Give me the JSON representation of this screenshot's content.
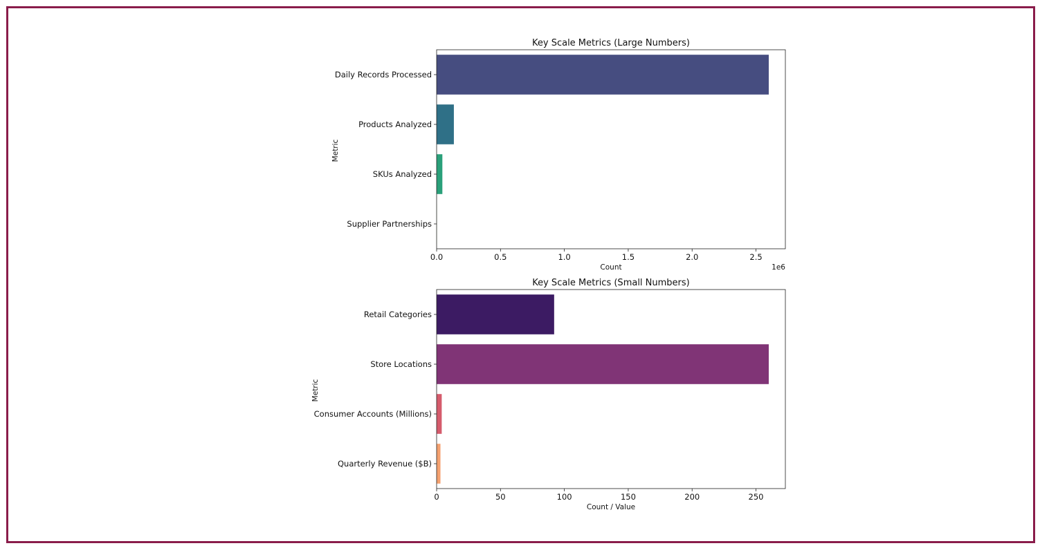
{
  "chart_data": [
    {
      "type": "bar",
      "orientation": "horizontal",
      "title": "Key Scale Metrics (Large Numbers)",
      "xlabel": "Count",
      "ylabel": "Metric",
      "offset_label": "1e6",
      "categories": [
        "Daily Records Processed",
        "Products Analyzed",
        "SKUs Analyzed",
        "Supplier Partnerships"
      ],
      "values": [
        2600000,
        135000,
        45000,
        1000
      ],
      "colors": [
        "#464d80",
        "#2f7087",
        "#2aa07a",
        "#70c84e"
      ],
      "xlim": [
        0,
        2730000
      ],
      "xticks": [
        0,
        500000,
        1000000,
        1500000,
        2000000,
        2500000
      ],
      "xtick_labels": [
        "0.0",
        "0.5",
        "1.0",
        "1.5",
        "2.0",
        "2.5"
      ],
      "grid": false
    },
    {
      "type": "bar",
      "orientation": "horizontal",
      "title": "Key Scale Metrics (Small Numbers)",
      "xlabel": "Count / Value",
      "ylabel": "Metric",
      "categories": [
        "Retail Categories",
        "Store Locations",
        "Consumer Accounts (Millions)",
        "Quarterly Revenue ($B)"
      ],
      "values": [
        92,
        260,
        4,
        3
      ],
      "colors": [
        "#3c1b63",
        "#803476",
        "#d55b6c",
        "#f4a16f"
      ],
      "xlim": [
        0,
        273
      ],
      "xticks": [
        0,
        50,
        100,
        150,
        200,
        250
      ],
      "xtick_labels": [
        "0",
        "50",
        "100",
        "150",
        "200",
        "250"
      ],
      "grid": false
    }
  ]
}
